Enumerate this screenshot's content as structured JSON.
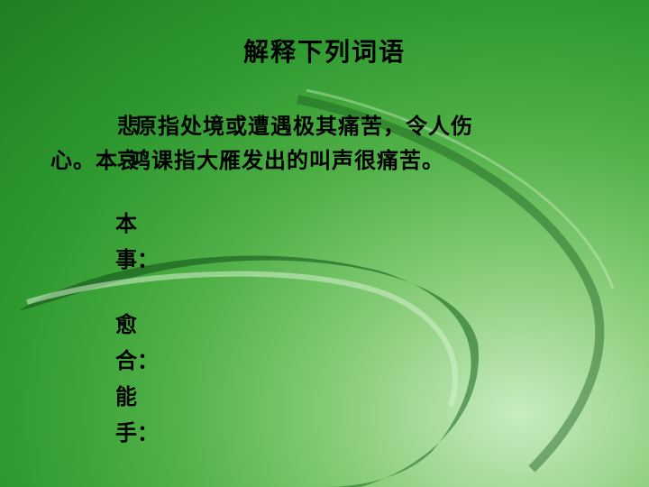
{
  "slide": {
    "title": "解释下列词语",
    "paragraph": {
      "line1_overlap_char": "悲",
      "line1_text": "原指处境或遭遇极其痛苦，令人伤",
      "line2_start": "心。本",
      "line2_overlap_char": "哀",
      "line2_text": "鸿课指大雁发出的叫声很痛苦。"
    },
    "terms": [
      {
        "line1": "本",
        "line2": "事："
      },
      {
        "line1": "愈",
        "line2": "合："
      },
      {
        "line1": "能",
        "line2": "手："
      }
    ]
  },
  "colors": {
    "background_dark": "#1f7e24",
    "background_light": "#c8ecc0",
    "swoosh_dark": "#1a5e1e",
    "swoosh_light": "#d6f0cf"
  }
}
